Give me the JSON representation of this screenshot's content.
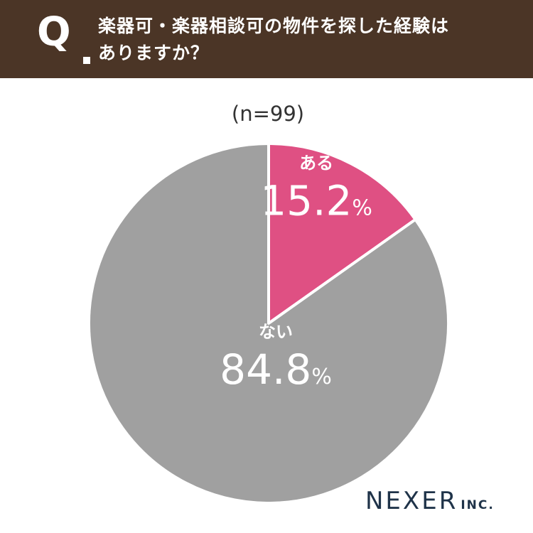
{
  "header": {
    "q_label": "Q",
    "question_lines": [
      "楽器可・楽器相談可の物件を探した経験は",
      "ありますか？"
    ]
  },
  "colors": {
    "header_bg": "#4b3526",
    "slice_yes": "#df5083",
    "slice_no": "#a0a0a0",
    "label_text": "#ffffff",
    "logo_text": "#1f3349"
  },
  "chart_data": {
    "type": "pie",
    "n_label": "(n=99)",
    "start_angle": "12 o'clock, clockwise",
    "slices": [
      {
        "label": "ある",
        "value": 15.2,
        "value_text": "15.2",
        "unit": "%"
      },
      {
        "label": "ない",
        "value": 84.8,
        "value_text": "84.8",
        "unit": "%"
      }
    ]
  },
  "logo": {
    "main": "NEXER",
    "sub": "INC."
  }
}
